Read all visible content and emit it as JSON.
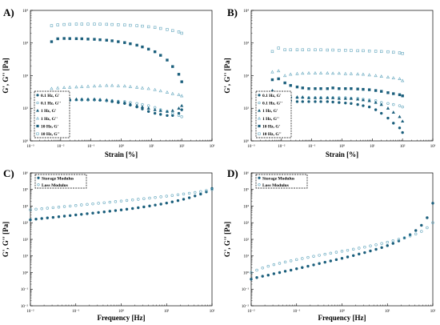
{
  "colors": {
    "filled": "#1b5f7c",
    "open": "#5fa4bc",
    "axis": "#000000"
  },
  "chart_data": [
    {
      "letter": "A)",
      "type": "scatter",
      "xlabel": "Strain [%]",
      "ylabel": "G', G'' [Pa]",
      "xscale": "log",
      "yscale": "log",
      "xlim": [
        0.001,
        1000
      ],
      "ylim": [
        1,
        10000
      ],
      "xticks": [
        0.001,
        0.01,
        0.1,
        1,
        10,
        100,
        1000
      ],
      "xtick_labels": [
        "10⁻³",
        "10⁻²",
        "10⁻¹",
        "10⁰",
        "10¹",
        "10²",
        "10³"
      ],
      "yticks": [
        1,
        10,
        100,
        1000,
        10000
      ],
      "ytick_labels": [
        "10⁰",
        "10¹",
        "10²",
        "10³",
        "10⁴"
      ],
      "legend_position": "bottom-left",
      "series": [
        {
          "name": "0.1 Hz, G'",
          "marker": "circle-filled",
          "x": [
            0.005,
            0.008,
            0.013,
            0.02,
            0.033,
            0.05,
            0.08,
            0.13,
            0.2,
            0.33,
            0.5,
            0.8,
            1.3,
            2,
            3.3,
            5,
            8,
            13,
            20,
            33,
            50,
            80,
            100
          ],
          "y": [
            14,
            16,
            17,
            17.5,
            18,
            18,
            18,
            18,
            17.5,
            17,
            16,
            15,
            14,
            12.5,
            11,
            9.5,
            8,
            7,
            6.5,
            6,
            6,
            7,
            9
          ]
        },
        {
          "name": "0.1 Hz, G''",
          "marker": "circle-open",
          "x": [
            0.005,
            0.008,
            0.013,
            0.02,
            0.033,
            0.05,
            0.08,
            0.13,
            0.2,
            0.33,
            0.5,
            0.8,
            1.3,
            2,
            3.3,
            5,
            8,
            13,
            20,
            33,
            50,
            80,
            100
          ],
          "y": [
            15,
            16,
            17,
            17.5,
            18,
            18.5,
            18.5,
            18.5,
            18,
            17.5,
            17,
            16.5,
            16,
            15,
            14,
            13,
            12,
            10.5,
            9,
            8,
            7,
            6,
            5.5
          ]
        },
        {
          "name": "1 Hz, G'",
          "marker": "triangle-filled",
          "x": [
            0.005,
            0.008,
            0.013,
            0.02,
            0.033,
            0.05,
            0.08,
            0.13,
            0.2,
            0.33,
            0.5,
            0.8,
            1.3,
            2,
            3.3,
            5,
            8,
            13,
            20,
            33,
            50,
            80,
            100
          ],
          "y": [
            22,
            20,
            19,
            19,
            19,
            19,
            19,
            19,
            18.5,
            18,
            17,
            16,
            15,
            13.5,
            12,
            11,
            10,
            9,
            8.5,
            8,
            8.5,
            10,
            12
          ]
        },
        {
          "name": "1 Hz, G''",
          "marker": "triangle-open",
          "x": [
            0.005,
            0.008,
            0.013,
            0.02,
            0.033,
            0.05,
            0.08,
            0.13,
            0.2,
            0.33,
            0.5,
            0.8,
            1.3,
            2,
            3.3,
            5,
            8,
            13,
            20,
            33,
            50,
            80,
            100
          ],
          "y": [
            40,
            42,
            43,
            44,
            45,
            46,
            47,
            48,
            49,
            50,
            50,
            49,
            48,
            46,
            44,
            42,
            40,
            37,
            34,
            31,
            28,
            26,
            24
          ]
        },
        {
          "name": "10 Hz, G'",
          "marker": "square-filled",
          "x": [
            0.005,
            0.008,
            0.013,
            0.02,
            0.033,
            0.05,
            0.08,
            0.13,
            0.2,
            0.33,
            0.5,
            0.8,
            1.3,
            2,
            3.3,
            5,
            8,
            13,
            20,
            33,
            50,
            80,
            100
          ],
          "y": [
            1100,
            1350,
            1380,
            1370,
            1360,
            1350,
            1320,
            1300,
            1260,
            1220,
            1170,
            1100,
            1030,
            950,
            860,
            760,
            650,
            540,
            420,
            300,
            190,
            110,
            65
          ]
        },
        {
          "name": "10 Hz, G''",
          "marker": "square-open",
          "x": [
            0.005,
            0.008,
            0.013,
            0.02,
            0.033,
            0.05,
            0.08,
            0.13,
            0.2,
            0.33,
            0.5,
            0.8,
            1.3,
            2,
            3.3,
            5,
            8,
            13,
            20,
            33,
            50,
            80,
            100
          ],
          "y": [
            3400,
            3600,
            3700,
            3750,
            3800,
            3800,
            3800,
            3800,
            3780,
            3750,
            3700,
            3650,
            3580,
            3500,
            3400,
            3300,
            3150,
            3000,
            2800,
            2600,
            2400,
            2200,
            2000
          ]
        }
      ]
    },
    {
      "letter": "B)",
      "type": "scatter",
      "xlabel": "Strain [%]",
      "ylabel": "G', G'' [Pa]",
      "xscale": "log",
      "yscale": "log",
      "xlim": [
        0.001,
        1000
      ],
      "ylim": [
        1,
        10000
      ],
      "xticks": [
        0.001,
        0.01,
        0.1,
        1,
        10,
        100,
        1000
      ],
      "xtick_labels": [
        "10⁻³",
        "10⁻²",
        "10⁻¹",
        "10⁰",
        "10¹",
        "10²",
        "10³"
      ],
      "yticks": [
        1,
        10,
        100,
        1000,
        10000
      ],
      "ytick_labels": [
        "10⁰",
        "10¹",
        "10²",
        "10³",
        "10⁴"
      ],
      "legend_position": "bottom-left",
      "series": [
        {
          "name": "0.1 Hz, G'",
          "marker": "circle-filled",
          "x": [
            0.005,
            0.008,
            0.013,
            0.02,
            0.033,
            0.05,
            0.08,
            0.13,
            0.2,
            0.33,
            0.5,
            0.8,
            1.3,
            2,
            3.3,
            5,
            8,
            13,
            20,
            33,
            50,
            80,
            100
          ],
          "y": [
            23,
            20,
            18,
            17,
            16,
            16,
            16,
            16,
            16,
            16,
            15.5,
            15,
            14.5,
            14,
            13,
            12,
            11,
            9,
            7,
            5,
            3.5,
            2.5,
            1.8
          ]
        },
        {
          "name": "0.1 Hz, G''",
          "marker": "circle-open",
          "x": [
            0.005,
            0.008,
            0.013,
            0.02,
            0.033,
            0.05,
            0.08,
            0.13,
            0.2,
            0.33,
            0.5,
            0.8,
            1.3,
            2,
            3.3,
            5,
            8,
            13,
            20,
            33,
            50,
            80,
            100
          ],
          "y": [
            20,
            26,
            22,
            21,
            21,
            21,
            21,
            21,
            21,
            21,
            21,
            21,
            21,
            20,
            20,
            19,
            18,
            17,
            15,
            14,
            13,
            12,
            11
          ]
        },
        {
          "name": "1 Hz, G'",
          "marker": "triangle-filled",
          "x": [
            0.005,
            0.008,
            0.013,
            0.02,
            0.033,
            0.05,
            0.08,
            0.13,
            0.2,
            0.33,
            0.5,
            0.8,
            1.3,
            2,
            3.3,
            5,
            8,
            13,
            20,
            33,
            50,
            80,
            100
          ],
          "y": [
            35,
            28,
            25,
            23,
            22,
            22,
            21,
            21,
            21,
            21,
            21,
            20,
            20,
            20,
            19,
            18,
            17,
            15,
            13,
            10,
            7.5,
            5.5,
            4
          ]
        },
        {
          "name": "1 Hz, G''",
          "marker": "triangle-open",
          "x": [
            0.005,
            0.008,
            0.013,
            0.02,
            0.033,
            0.05,
            0.08,
            0.13,
            0.2,
            0.33,
            0.5,
            0.8,
            1.3,
            2,
            3.3,
            5,
            8,
            13,
            20,
            33,
            50,
            80,
            100
          ],
          "y": [
            130,
            140,
            100,
            110,
            115,
            118,
            120,
            120,
            120,
            120,
            118,
            118,
            115,
            115,
            112,
            110,
            105,
            100,
            95,
            90,
            85,
            80,
            70
          ]
        },
        {
          "name": "10 Hz, G'",
          "marker": "square-filled",
          "x": [
            0.005,
            0.008,
            0.013,
            0.02,
            0.033,
            0.05,
            0.08,
            0.13,
            0.2,
            0.33,
            0.5,
            0.8,
            1.3,
            2,
            3.3,
            5,
            8,
            13,
            20,
            33,
            50,
            80,
            100
          ],
          "y": [
            75,
            80,
            60,
            50,
            45,
            42,
            40,
            40,
            40,
            40,
            42,
            40,
            40,
            40,
            39,
            38,
            37,
            35,
            33,
            30,
            28,
            26,
            24
          ]
        },
        {
          "name": "10 Hz, G''",
          "marker": "square-open",
          "x": [
            0.005,
            0.008,
            0.013,
            0.02,
            0.033,
            0.05,
            0.08,
            0.13,
            0.2,
            0.33,
            0.5,
            0.8,
            1.3,
            2,
            3.3,
            5,
            8,
            13,
            20,
            33,
            50,
            80,
            100
          ],
          "y": [
            550,
            700,
            620,
            620,
            620,
            620,
            620,
            620,
            620,
            610,
            610,
            600,
            600,
            590,
            580,
            580,
            570,
            560,
            550,
            540,
            520,
            500,
            480
          ]
        }
      ]
    },
    {
      "letter": "C)",
      "type": "scatter",
      "xlabel": "Frequency [Hz]",
      "ylabel": "G', G'' [Pa]",
      "xscale": "log",
      "yscale": "log",
      "xlim": [
        0.01,
        100
      ],
      "ylim": [
        0.01,
        1000000
      ],
      "xticks": [
        0.01,
        0.1,
        1,
        10,
        100
      ],
      "xtick_labels": [
        "10⁻²",
        "10⁻¹",
        "10⁰",
        "10¹",
        "10²"
      ],
      "yticks": [
        0.01,
        0.1,
        1,
        10,
        100,
        1000,
        10000,
        100000,
        1000000
      ],
      "ytick_labels": [
        "10⁻²",
        "10⁻¹",
        "10⁰",
        "10¹",
        "10²",
        "10³",
        "10⁴",
        "10⁵",
        "10⁶"
      ],
      "legend_position": "top-left",
      "series": [
        {
          "name": "Storage Modulus",
          "marker": "circle-filled",
          "x": [
            0.01,
            0.0133,
            0.0178,
            0.0237,
            0.0316,
            0.0422,
            0.0562,
            0.075,
            0.1,
            0.133,
            0.178,
            0.237,
            0.316,
            0.422,
            0.562,
            0.75,
            1,
            1.33,
            1.78,
            2.37,
            3.16,
            4.22,
            5.62,
            7.5,
            10,
            13.3,
            17.8,
            23.7,
            31.6,
            42.2,
            56.2,
            75,
            100
          ],
          "y": [
            1500,
            1650,
            1800,
            1950,
            2100,
            2300,
            2500,
            2700,
            2950,
            3200,
            3500,
            3800,
            4150,
            4500,
            4950,
            5400,
            5900,
            6500,
            7200,
            8000,
            9000,
            10200,
            11600,
            13200,
            15300,
            18000,
            21500,
            26000,
            32000,
            41000,
            53000,
            72000,
            115000
          ]
        },
        {
          "name": "Loss Modulus",
          "marker": "circle-open",
          "x": [
            0.01,
            0.0133,
            0.0178,
            0.0237,
            0.0316,
            0.0422,
            0.0562,
            0.075,
            0.1,
            0.133,
            0.178,
            0.237,
            0.316,
            0.422,
            0.562,
            0.75,
            1,
            1.33,
            1.78,
            2.37,
            3.16,
            4.22,
            5.62,
            7.5,
            10,
            13.3,
            17.8,
            23.7,
            31.6,
            42.2,
            56.2,
            75,
            100
          ],
          "y": [
            6000,
            6500,
            7000,
            7500,
            8100,
            8700,
            9400,
            10100,
            10900,
            11800,
            12700,
            13700,
            14800,
            16000,
            17300,
            18700,
            20200,
            21900,
            23700,
            25700,
            27900,
            30400,
            33200,
            36300,
            39800,
            43800,
            48300,
            53500,
            59500,
            66500,
            75000,
            86000,
            100000
          ]
        }
      ]
    },
    {
      "letter": "D)",
      "type": "scatter",
      "xlabel": "Frequency [Hz]",
      "ylabel": "G', G'' [Pa]",
      "xscale": "log",
      "yscale": "log",
      "xlim": [
        0.01,
        100
      ],
      "ylim": [
        0.01,
        1000000
      ],
      "xticks": [
        0.01,
        0.1,
        1,
        10,
        100
      ],
      "xtick_labels": [
        "10⁻²",
        "10⁻¹",
        "10⁰",
        "10¹",
        "10²"
      ],
      "yticks": [
        0.01,
        0.1,
        1,
        10,
        100,
        1000,
        10000,
        100000,
        1000000
      ],
      "ytick_labels": [
        "10⁻²",
        "10⁻¹",
        "10⁰",
        "10¹",
        "10²",
        "10³",
        "10⁴",
        "10⁵",
        "10⁶"
      ],
      "legend_position": "top-left",
      "series": [
        {
          "name": "Storage Modulus",
          "marker": "circle-filled",
          "x": [
            0.01,
            0.0133,
            0.0178,
            0.0237,
            0.0316,
            0.0422,
            0.0562,
            0.075,
            0.1,
            0.133,
            0.178,
            0.237,
            0.316,
            0.422,
            0.562,
            0.75,
            1,
            1.33,
            1.78,
            2.37,
            3.16,
            4.22,
            5.62,
            7.5,
            10,
            13.3,
            17.8,
            23.7,
            31.6,
            42.2,
            56.2,
            75,
            100
          ],
          "y": [
            0.4,
            0.5,
            0.6,
            0.7,
            0.85,
            1,
            1.2,
            1.4,
            1.7,
            2,
            2.4,
            2.9,
            3.5,
            4.2,
            5,
            6,
            7.2,
            8.7,
            10.5,
            13,
            16,
            20,
            25,
            32,
            42,
            57,
            80,
            120,
            190,
            340,
            700,
            2000,
            15000
          ]
        },
        {
          "name": "Loss Modulus",
          "marker": "circle-open",
          "x": [
            0.01,
            0.0133,
            0.0178,
            0.0237,
            0.0316,
            0.0422,
            0.0562,
            0.075,
            0.1,
            0.133,
            0.178,
            0.237,
            0.316,
            0.422,
            0.562,
            0.75,
            1,
            1.33,
            1.78,
            2.37,
            3.16,
            4.22,
            5.62,
            7.5,
            10,
            13.3,
            17.8,
            23.7,
            31.6,
            42.2,
            56.2,
            75,
            100
          ],
          "y": [
            1,
            1.4,
            1.9,
            2.4,
            3,
            3.6,
            4.3,
            5.1,
            6,
            7,
            8.2,
            9.5,
            11,
            12.7,
            14.6,
            16.8,
            19.3,
            22,
            25.5,
            29.5,
            34,
            40,
            47,
            56,
            67,
            82,
            100,
            125,
            160,
            210,
            300,
            500,
            1000
          ]
        }
      ]
    }
  ]
}
